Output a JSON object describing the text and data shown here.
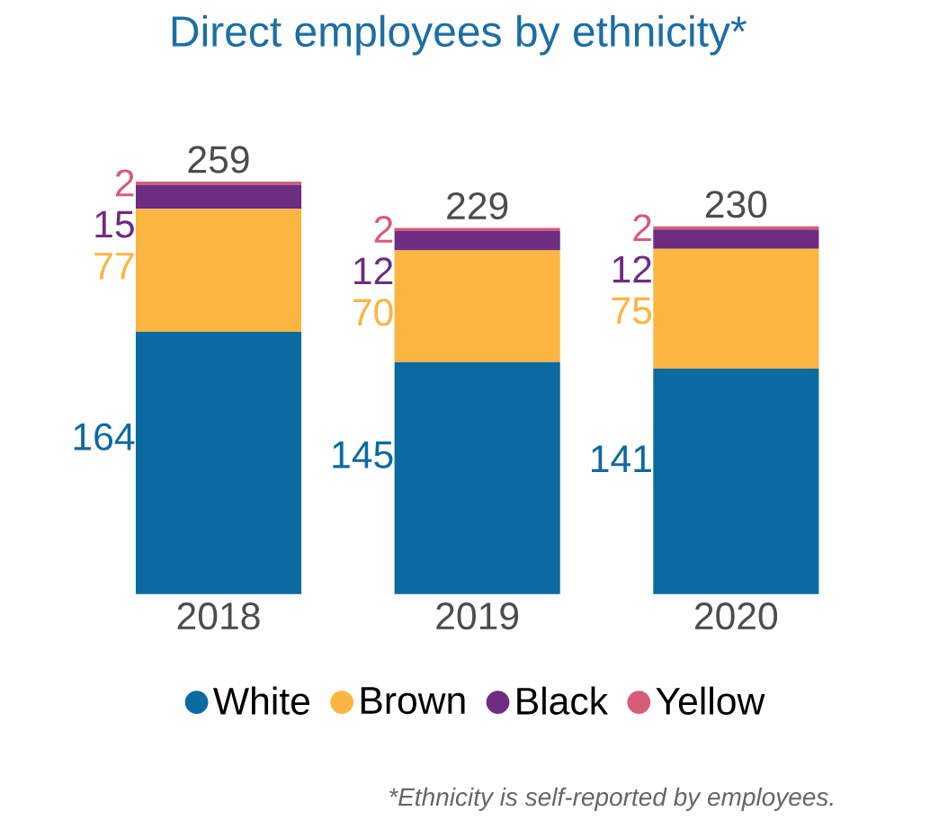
{
  "chart_data": {
    "type": "bar",
    "title": "Direct employees by ethnicity*",
    "categories": [
      "2018",
      "2019",
      "2020"
    ],
    "stacked": true,
    "data_labels": true,
    "legend": "bottom",
    "series": [
      {
        "name": "White",
        "color": "#0b6aa2",
        "values": [
          164,
          145,
          141
        ]
      },
      {
        "name": "Brown",
        "color": "#fbb540",
        "values": [
          77,
          70,
          75
        ]
      },
      {
        "name": "Black",
        "color": "#6c2d82",
        "values": [
          15,
          12,
          12
        ]
      },
      {
        "name": "Yellow",
        "color": "#d65c78",
        "values": [
          2,
          2,
          2
        ]
      }
    ],
    "totals": [
      "259",
      "229",
      "230"
    ],
    "annotations": [
      "*Ethnicity is self-reported by employees."
    ]
  }
}
